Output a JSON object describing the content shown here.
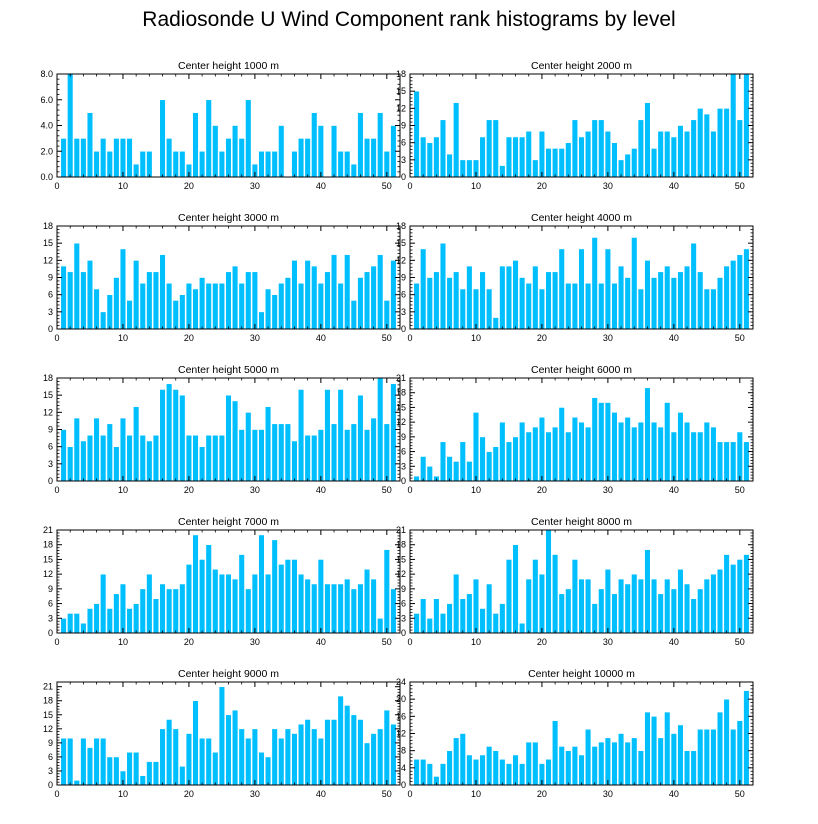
{
  "title": "Radiosonde U Wind Component rank histograms by level",
  "style": {
    "bar_color": "#00BFFF",
    "bar_edge": "#ffffff",
    "axis_color": "#000000",
    "background": "#ffffff"
  },
  "chart_data": [
    {
      "type": "bar",
      "title": "Center height 1000 m",
      "xlim": [
        0,
        52
      ],
      "ylim": [
        0,
        8
      ],
      "xticks": [
        0,
        10,
        20,
        30,
        40,
        50
      ],
      "xtick_labels": [
        "0",
        "10",
        "20",
        "30",
        "40",
        "50"
      ],
      "yticks": [
        0,
        2,
        4,
        6,
        8
      ],
      "ytick_labels": [
        "0.0",
        "2.0",
        "4.0",
        "6.0",
        "8.0"
      ],
      "x": [
        1,
        2,
        3,
        4,
        5,
        6,
        7,
        8,
        9,
        10,
        11,
        12,
        13,
        14,
        15,
        16,
        17,
        18,
        19,
        20,
        21,
        22,
        23,
        24,
        25,
        26,
        27,
        28,
        29,
        30,
        31,
        32,
        33,
        34,
        35,
        36,
        37,
        38,
        39,
        40,
        41,
        42,
        43,
        44,
        45,
        46,
        47,
        48,
        49,
        50,
        51
      ],
      "values": [
        3,
        8,
        3,
        3,
        5,
        2,
        3,
        2,
        3,
        3,
        3,
        1,
        2,
        2,
        0,
        6,
        3,
        2,
        2,
        1,
        5,
        2,
        6,
        4,
        2,
        3,
        4,
        3,
        6,
        1,
        2,
        2,
        2,
        4,
        0,
        2,
        3,
        3,
        5,
        4,
        0,
        4,
        2,
        2,
        1,
        5,
        3,
        3,
        5,
        2,
        4
      ]
    },
    {
      "type": "bar",
      "title": "Center height 2000 m",
      "xlim": [
        0,
        52
      ],
      "ylim": [
        0,
        18
      ],
      "xticks": [
        0,
        10,
        20,
        30,
        40,
        50
      ],
      "xtick_labels": [
        "0",
        "10",
        "20",
        "30",
        "40",
        "50"
      ],
      "yticks": [
        0,
        3,
        6,
        9,
        12,
        15,
        18
      ],
      "ytick_labels": [
        "0",
        "3",
        "6",
        "9",
        "12",
        "15",
        "18"
      ],
      "x": [
        1,
        2,
        3,
        4,
        5,
        6,
        7,
        8,
        9,
        10,
        11,
        12,
        13,
        14,
        15,
        16,
        17,
        18,
        19,
        20,
        21,
        22,
        23,
        24,
        25,
        26,
        27,
        28,
        29,
        30,
        31,
        32,
        33,
        34,
        35,
        36,
        37,
        38,
        39,
        40,
        41,
        42,
        43,
        44,
        45,
        46,
        47,
        48,
        49,
        50,
        51
      ],
      "values": [
        15,
        7,
        6,
        7,
        10,
        4,
        13,
        3,
        3,
        3,
        7,
        10,
        10,
        2,
        7,
        7,
        7,
        8,
        3,
        8,
        5,
        5,
        5,
        6,
        10,
        7,
        8,
        10,
        10,
        8,
        6,
        3,
        4,
        5,
        10,
        13,
        5,
        8,
        8,
        7,
        9,
        8,
        10,
        12,
        11,
        8,
        12,
        12,
        18,
        10,
        18
      ]
    },
    {
      "type": "bar",
      "title": "Center height 3000 m",
      "xlim": [
        0,
        52
      ],
      "ylim": [
        0,
        18
      ],
      "xticks": [
        0,
        10,
        20,
        30,
        40,
        50
      ],
      "xtick_labels": [
        "0",
        "10",
        "20",
        "30",
        "40",
        "50"
      ],
      "yticks": [
        0,
        3,
        6,
        9,
        12,
        15,
        18
      ],
      "ytick_labels": [
        "0",
        "3",
        "6",
        "9",
        "12",
        "15",
        "18"
      ],
      "x": [
        1,
        2,
        3,
        4,
        5,
        6,
        7,
        8,
        9,
        10,
        11,
        12,
        13,
        14,
        15,
        16,
        17,
        18,
        19,
        20,
        21,
        22,
        23,
        24,
        25,
        26,
        27,
        28,
        29,
        30,
        31,
        32,
        33,
        34,
        35,
        36,
        37,
        38,
        39,
        40,
        41,
        42,
        43,
        44,
        45,
        46,
        47,
        48,
        49,
        50,
        51
      ],
      "values": [
        11,
        10,
        15,
        10,
        12,
        7,
        3,
        6,
        9,
        14,
        5,
        12,
        8,
        10,
        10,
        13,
        8,
        5,
        6,
        8,
        7,
        9,
        8,
        8,
        8,
        10,
        11,
        8,
        10,
        10,
        3,
        7,
        6,
        8,
        9,
        12,
        8,
        12,
        11,
        8,
        10,
        13,
        8,
        13,
        5,
        9,
        10,
        11,
        13,
        5,
        12
      ]
    },
    {
      "type": "bar",
      "title": "Center height 4000 m",
      "xlim": [
        0,
        52
      ],
      "ylim": [
        0,
        18
      ],
      "xticks": [
        0,
        10,
        20,
        30,
        40,
        50
      ],
      "xtick_labels": [
        "0",
        "10",
        "20",
        "30",
        "40",
        "50"
      ],
      "yticks": [
        0,
        3,
        6,
        9,
        12,
        15,
        18
      ],
      "ytick_labels": [
        "0",
        "3",
        "6",
        "9",
        "12",
        "15",
        "18"
      ],
      "x": [
        1,
        2,
        3,
        4,
        5,
        6,
        7,
        8,
        9,
        10,
        11,
        12,
        13,
        14,
        15,
        16,
        17,
        18,
        19,
        20,
        21,
        22,
        23,
        24,
        25,
        26,
        27,
        28,
        29,
        30,
        31,
        32,
        33,
        34,
        35,
        36,
        37,
        38,
        39,
        40,
        41,
        42,
        43,
        44,
        45,
        46,
        47,
        48,
        49,
        50,
        51
      ],
      "values": [
        8,
        14,
        9,
        10,
        15,
        9,
        10,
        7,
        11,
        7,
        10,
        7,
        2,
        11,
        11,
        12,
        9,
        8,
        11,
        7,
        10,
        10,
        14,
        8,
        8,
        14,
        8,
        16,
        8,
        14,
        8,
        11,
        9,
        16,
        7,
        12,
        9,
        10,
        11,
        9,
        10,
        11,
        15,
        10,
        7,
        7,
        9,
        11,
        12,
        13,
        14
      ]
    },
    {
      "type": "bar",
      "title": "Center height 5000 m",
      "xlim": [
        0,
        52
      ],
      "ylim": [
        0,
        18
      ],
      "xticks": [
        0,
        10,
        20,
        30,
        40,
        50
      ],
      "xtick_labels": [
        "0",
        "10",
        "20",
        "30",
        "40",
        "50"
      ],
      "yticks": [
        0,
        3,
        6,
        9,
        12,
        15,
        18
      ],
      "ytick_labels": [
        "0",
        "3",
        "6",
        "9",
        "12",
        "15",
        "18"
      ],
      "x": [
        1,
        2,
        3,
        4,
        5,
        6,
        7,
        8,
        9,
        10,
        11,
        12,
        13,
        14,
        15,
        16,
        17,
        18,
        19,
        20,
        21,
        22,
        23,
        24,
        25,
        26,
        27,
        28,
        29,
        30,
        31,
        32,
        33,
        34,
        35,
        36,
        37,
        38,
        39,
        40,
        41,
        42,
        43,
        44,
        45,
        46,
        47,
        48,
        49,
        50,
        51
      ],
      "values": [
        9,
        6,
        11,
        7,
        8,
        11,
        8,
        10,
        6,
        11,
        8,
        13,
        8,
        7,
        8,
        16,
        17,
        16,
        15,
        8,
        8,
        6,
        8,
        8,
        8,
        15,
        14,
        9,
        12,
        9,
        9,
        13,
        10,
        10,
        10,
        7,
        16,
        8,
        8,
        9,
        16,
        10,
        16,
        9,
        10,
        15,
        9,
        11,
        18,
        10,
        17
      ]
    },
    {
      "type": "bar",
      "title": "Center height 6000 m",
      "xlim": [
        0,
        52
      ],
      "ylim": [
        0,
        21
      ],
      "xticks": [
        0,
        10,
        20,
        30,
        40,
        50
      ],
      "xtick_labels": [
        "0",
        "10",
        "20",
        "30",
        "40",
        "50"
      ],
      "yticks": [
        0,
        3,
        6,
        9,
        12,
        15,
        18,
        21
      ],
      "ytick_labels": [
        "0",
        "3",
        "6",
        "9",
        "12",
        "15",
        "18",
        "21"
      ],
      "x": [
        1,
        2,
        3,
        4,
        5,
        6,
        7,
        8,
        9,
        10,
        11,
        12,
        13,
        14,
        15,
        16,
        17,
        18,
        19,
        20,
        21,
        22,
        23,
        24,
        25,
        26,
        27,
        28,
        29,
        30,
        31,
        32,
        33,
        34,
        35,
        36,
        37,
        38,
        39,
        40,
        41,
        42,
        43,
        44,
        45,
        46,
        47,
        48,
        49,
        50,
        51
      ],
      "values": [
        1,
        5,
        3,
        1,
        8,
        5,
        4,
        8,
        4,
        14,
        9,
        6,
        7,
        12,
        8,
        9,
        12,
        10,
        11,
        13,
        10,
        11,
        15,
        10,
        13,
        12,
        11,
        17,
        16,
        16,
        14,
        12,
        13,
        11,
        12,
        19,
        12,
        11,
        16,
        10,
        14,
        12,
        10,
        10,
        12,
        11,
        8,
        8,
        8,
        10,
        8
      ]
    },
    {
      "type": "bar",
      "title": "Center height 7000 m",
      "xlim": [
        0,
        52
      ],
      "ylim": [
        0,
        21
      ],
      "xticks": [
        0,
        10,
        20,
        30,
        40,
        50
      ],
      "xtick_labels": [
        "0",
        "10",
        "20",
        "30",
        "40",
        "50"
      ],
      "yticks": [
        0,
        3,
        6,
        9,
        12,
        15,
        18,
        21
      ],
      "ytick_labels": [
        "0",
        "3",
        "6",
        "9",
        "12",
        "15",
        "18",
        "21"
      ],
      "x": [
        1,
        2,
        3,
        4,
        5,
        6,
        7,
        8,
        9,
        10,
        11,
        12,
        13,
        14,
        15,
        16,
        17,
        18,
        19,
        20,
        21,
        22,
        23,
        24,
        25,
        26,
        27,
        28,
        29,
        30,
        31,
        32,
        33,
        34,
        35,
        36,
        37,
        38,
        39,
        40,
        41,
        42,
        43,
        44,
        45,
        46,
        47,
        48,
        49,
        50,
        51
      ],
      "values": [
        3,
        4,
        4,
        2,
        5,
        6,
        12,
        5,
        8,
        10,
        5,
        6,
        9,
        12,
        7,
        10,
        9,
        9,
        10,
        14,
        20,
        15,
        18,
        13,
        12,
        12,
        11,
        16,
        9,
        12,
        20,
        12,
        19,
        14,
        15,
        15,
        12,
        11,
        10,
        15,
        10,
        10,
        10,
        11,
        9,
        10,
        13,
        11,
        3,
        17,
        9
      ]
    },
    {
      "type": "bar",
      "title": "Center height 8000 m",
      "xlim": [
        0,
        52
      ],
      "ylim": [
        0,
        21
      ],
      "xticks": [
        0,
        10,
        20,
        30,
        40,
        50
      ],
      "xtick_labels": [
        "0",
        "10",
        "20",
        "30",
        "40",
        "50"
      ],
      "yticks": [
        0,
        3,
        6,
        9,
        12,
        15,
        18,
        21
      ],
      "ytick_labels": [
        "0",
        "3",
        "6",
        "9",
        "12",
        "15",
        "18",
        "21"
      ],
      "x": [
        1,
        2,
        3,
        4,
        5,
        6,
        7,
        8,
        9,
        10,
        11,
        12,
        13,
        14,
        15,
        16,
        17,
        18,
        19,
        20,
        21,
        22,
        23,
        24,
        25,
        26,
        27,
        28,
        29,
        30,
        31,
        32,
        33,
        34,
        35,
        36,
        37,
        38,
        39,
        40,
        41,
        42,
        43,
        44,
        45,
        46,
        47,
        48,
        49,
        50,
        51
      ],
      "values": [
        4,
        7,
        3,
        7,
        4,
        6,
        12,
        7,
        8,
        11,
        5,
        10,
        4,
        6,
        15,
        18,
        2,
        11,
        15,
        12,
        21,
        16,
        8,
        9,
        15,
        11,
        11,
        6,
        9,
        13,
        8,
        11,
        10,
        12,
        11,
        17,
        11,
        8,
        11,
        9,
        13,
        10,
        7,
        9,
        11,
        12,
        13,
        16,
        14,
        15,
        16
      ]
    },
    {
      "type": "bar",
      "title": "Center height 9000 m",
      "xlim": [
        0,
        52
      ],
      "ylim": [
        0,
        22
      ],
      "xticks": [
        0,
        10,
        20,
        30,
        40,
        50
      ],
      "xtick_labels": [
        "0",
        "10",
        "20",
        "30",
        "40",
        "50"
      ],
      "yticks": [
        0,
        3,
        6,
        9,
        12,
        15,
        18,
        21
      ],
      "ytick_labels": [
        "0",
        "3",
        "6",
        "9",
        "12",
        "15",
        "18",
        "21"
      ],
      "x": [
        1,
        2,
        3,
        4,
        5,
        6,
        7,
        8,
        9,
        10,
        11,
        12,
        13,
        14,
        15,
        16,
        17,
        18,
        19,
        20,
        21,
        22,
        23,
        24,
        25,
        26,
        27,
        28,
        29,
        30,
        31,
        32,
        33,
        34,
        35,
        36,
        37,
        38,
        39,
        40,
        41,
        42,
        43,
        44,
        45,
        46,
        47,
        48,
        49,
        50,
        51
      ],
      "values": [
        10,
        10,
        1,
        10,
        8,
        10,
        10,
        6,
        6,
        3,
        7,
        7,
        2,
        5,
        5,
        12,
        14,
        12,
        4,
        11,
        18,
        10,
        10,
        7,
        21,
        15,
        16,
        12,
        10,
        12,
        7,
        6,
        12,
        10,
        12,
        11,
        13,
        14,
        12,
        10,
        14,
        14,
        19,
        17,
        15,
        14,
        9,
        11,
        12,
        16,
        13
      ]
    },
    {
      "type": "bar",
      "title": "Center height 10000 m",
      "xlim": [
        0,
        52
      ],
      "ylim": [
        0,
        24
      ],
      "xticks": [
        0,
        10,
        20,
        30,
        40,
        50
      ],
      "xtick_labels": [
        "0",
        "10",
        "20",
        "30",
        "40",
        "50"
      ],
      "yticks": [
        0,
        4,
        8,
        12,
        16,
        20,
        24
      ],
      "ytick_labels": [
        "0",
        "4",
        "8",
        "12",
        "16",
        "20",
        "24"
      ],
      "x": [
        1,
        2,
        3,
        4,
        5,
        6,
        7,
        8,
        9,
        10,
        11,
        12,
        13,
        14,
        15,
        16,
        17,
        18,
        19,
        20,
        21,
        22,
        23,
        24,
        25,
        26,
        27,
        28,
        29,
        30,
        31,
        32,
        33,
        34,
        35,
        36,
        37,
        38,
        39,
        40,
        41,
        42,
        43,
        44,
        45,
        46,
        47,
        48,
        49,
        50,
        51
      ],
      "values": [
        6,
        6,
        5,
        2,
        5,
        8,
        11,
        12,
        7,
        6,
        7,
        9,
        8,
        6,
        5,
        7,
        5,
        10,
        10,
        5,
        6,
        15,
        9,
        8,
        9,
        7,
        13,
        9,
        10,
        11,
        10,
        12,
        10,
        11,
        8,
        17,
        16,
        11,
        17,
        12,
        14,
        8,
        8,
        13,
        13,
        13,
        17,
        20,
        13,
        15,
        22
      ]
    }
  ]
}
